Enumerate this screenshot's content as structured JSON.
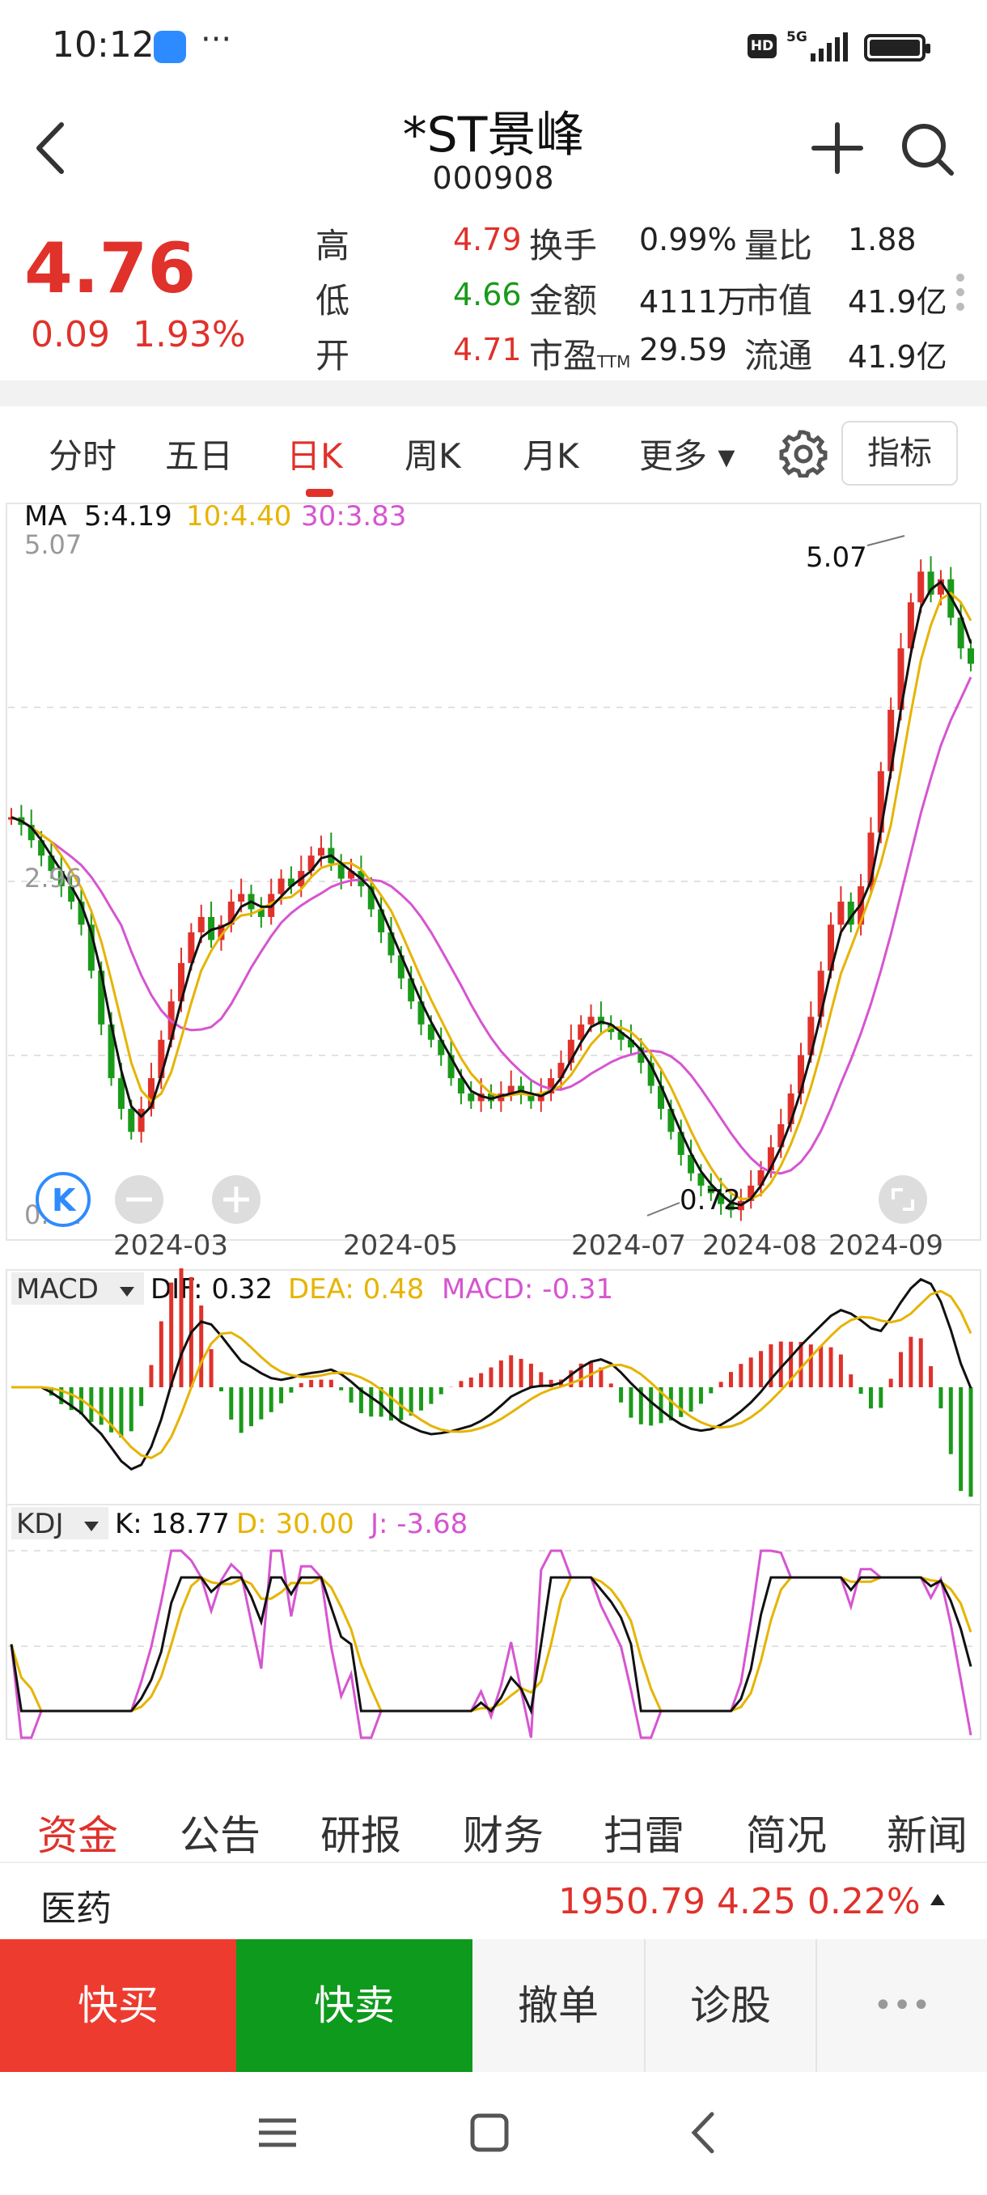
{
  "status_bar": {
    "time": "10:12",
    "dots": "···",
    "hd": "HD",
    "network": "5G"
  },
  "header": {
    "title": "*ST景峰",
    "code": "000908",
    "back_icon": "chevron-left-icon",
    "add_icon": "plus-icon",
    "search_icon": "search-icon"
  },
  "quote": {
    "price": "4.76",
    "change": "0.09",
    "change_pct": "1.93%",
    "stats": [
      {
        "label": "高",
        "value": "4.79",
        "color": "red"
      },
      {
        "label": "换手",
        "value": "0.99%",
        "color": "black"
      },
      {
        "label": "量比",
        "value": "1.88",
        "color": "black"
      },
      {
        "label": "低",
        "value": "4.66",
        "color": "green"
      },
      {
        "label": "金额",
        "value": "4111万",
        "color": "black"
      },
      {
        "label": "市值",
        "value": "41.9亿",
        "color": "black"
      },
      {
        "label": "开",
        "value": "4.71",
        "color": "red"
      },
      {
        "label": "市盈",
        "sub": "TTM",
        "value": "29.59",
        "color": "black"
      },
      {
        "label": "流通",
        "value": "41.9亿",
        "color": "black"
      }
    ]
  },
  "period_tabs": [
    {
      "label": "分时",
      "active": false
    },
    {
      "label": "五日",
      "active": false
    },
    {
      "label": "日K",
      "active": true
    },
    {
      "label": "周K",
      "active": false
    },
    {
      "label": "月K",
      "active": false
    },
    {
      "label": "更多",
      "active": false
    }
  ],
  "indicator_button": "指标",
  "colors": {
    "up": "#e0312b",
    "down": "#1a9a1a",
    "ma5": "#000000",
    "ma10": "#e6b400",
    "ma30": "#d655d0"
  },
  "chart_data": {
    "type": "candlestick",
    "ma_legend": {
      "name": "MA",
      "ma5": "5:4.19",
      "ma10": "10:4.40",
      "ma30": "30:3.83"
    },
    "y_max_label": "5.07",
    "y_mid_label": "2.96",
    "y_min_label": "0.72",
    "high_annotation": "5.07",
    "low_annotation": "0.72",
    "ylim": [
      0.72,
      5.07
    ],
    "x_labels": [
      "2024-03",
      "2024-05",
      "2024-07",
      "2024-08",
      "2024-09"
    ],
    "grid": true,
    "close_series": [
      3.3,
      3.25,
      3.15,
      3.05,
      2.95,
      2.85,
      2.75,
      2.6,
      2.3,
      1.95,
      1.6,
      1.4,
      1.25,
      1.4,
      1.6,
      1.85,
      2.1,
      2.35,
      2.55,
      2.65,
      2.5,
      2.6,
      2.75,
      2.8,
      2.7,
      2.65,
      2.8,
      2.9,
      2.85,
      2.95,
      3.05,
      3.1,
      3.0,
      2.9,
      2.95,
      2.85,
      2.7,
      2.55,
      2.4,
      2.25,
      2.1,
      1.95,
      1.85,
      1.75,
      1.6,
      1.5,
      1.45,
      1.5,
      1.45,
      1.5,
      1.55,
      1.5,
      1.45,
      1.5,
      1.6,
      1.7,
      1.85,
      1.95,
      2.0,
      1.95,
      1.9,
      1.85,
      1.8,
      1.7,
      1.55,
      1.4,
      1.25,
      1.1,
      0.98,
      0.9,
      0.85,
      0.78,
      0.74,
      0.8,
      0.9,
      1.0,
      1.15,
      1.3,
      1.5,
      1.75,
      2.0,
      2.3,
      2.6,
      2.75,
      2.6,
      2.85,
      3.2,
      3.6,
      4.0,
      4.4,
      4.7,
      4.9,
      4.75,
      4.85,
      4.6,
      4.4,
      4.3
    ],
    "macd": {
      "dif": "DIF: 0.32",
      "dea": "DEA: 0.48",
      "macd": "MACD: -0.31",
      "title": "MACD"
    },
    "kdj": {
      "k": "K: 18.77",
      "d": "D: 30.00",
      "j": "J: -3.68",
      "title": "KDJ"
    }
  },
  "info_tabs": [
    {
      "label": "资金",
      "active": true
    },
    {
      "label": "公告",
      "active": false
    },
    {
      "label": "研报",
      "active": false
    },
    {
      "label": "财务",
      "active": false
    },
    {
      "label": "扫雷",
      "active": false
    },
    {
      "label": "简况",
      "active": false
    },
    {
      "label": "新闻",
      "active": false
    }
  ],
  "sector": {
    "name": "医药",
    "values": "1950.79  4.25  0.22%"
  },
  "actions": {
    "buy": "快买",
    "sell": "快卖",
    "cancel": "撤单",
    "diagnose": "诊股",
    "more": "•••"
  }
}
